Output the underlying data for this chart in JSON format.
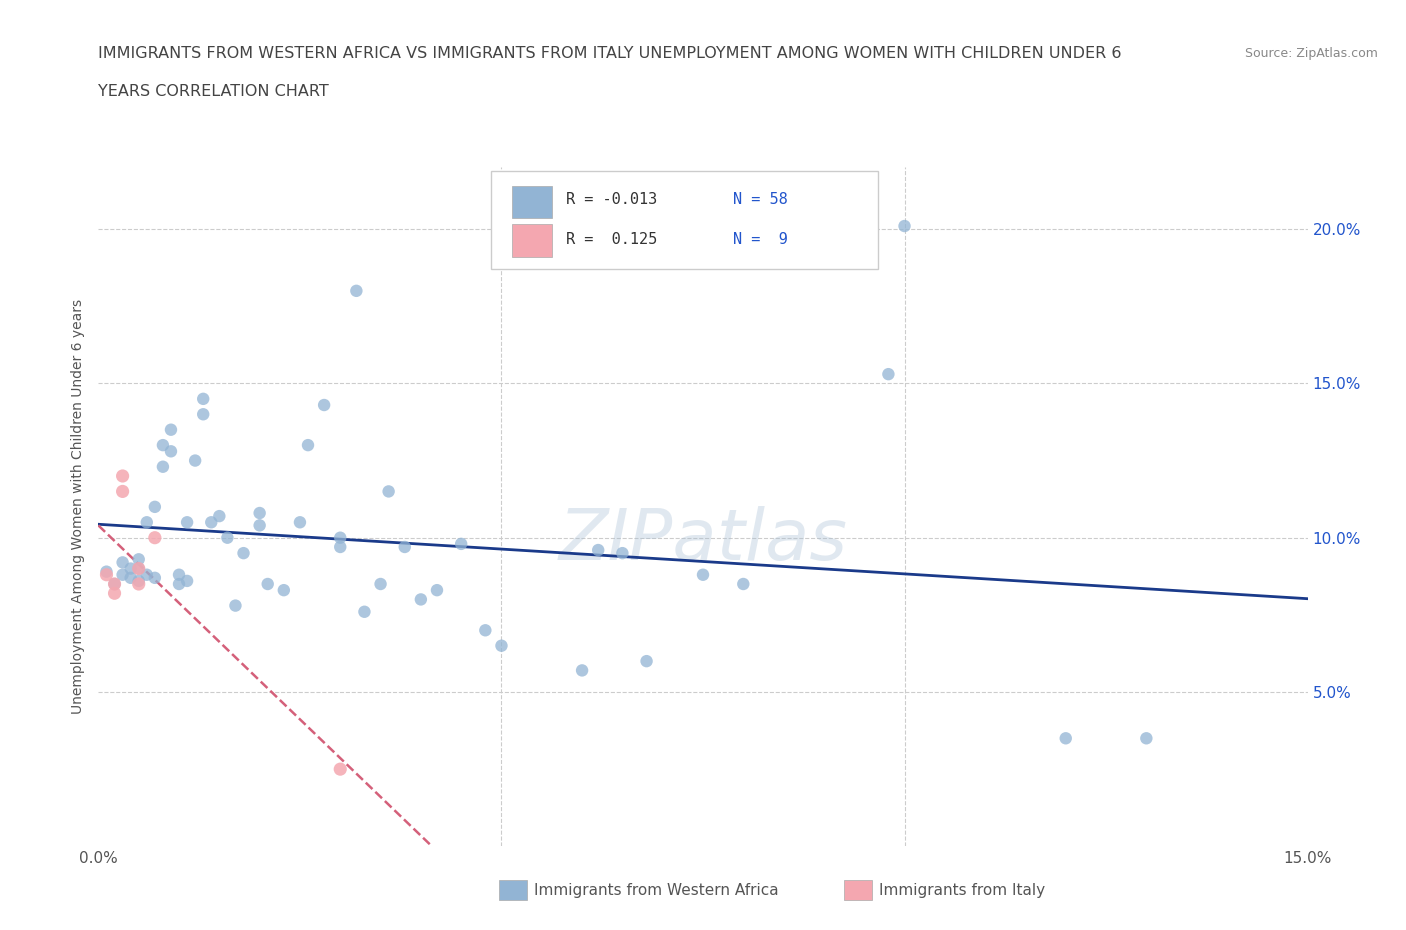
{
  "title_line1": "IMMIGRANTS FROM WESTERN AFRICA VS IMMIGRANTS FROM ITALY UNEMPLOYMENT AMONG WOMEN WITH CHILDREN UNDER 6",
  "title_line2": "YEARS CORRELATION CHART",
  "source": "Source: ZipAtlas.com",
  "xlabel_label": "Immigrants from Western Africa",
  "ylabel_label": "Unemployment Among Women with Children Under 6 years",
  "xlabel2_label": "Immigrants from Italy",
  "xlim": [
    0.0,
    0.15
  ],
  "ylim": [
    0.0,
    0.22
  ],
  "yticks": [
    0.0,
    0.05,
    0.1,
    0.15,
    0.2
  ],
  "ytick_labels": [
    "",
    "5.0%",
    "10.0%",
    "15.0%",
    "20.0%"
  ],
  "xticks": [
    0.0,
    0.05,
    0.1,
    0.15
  ],
  "xtick_labels": [
    "0.0%",
    "",
    "",
    "15.0%"
  ],
  "legend_blue_r": "R = -0.013",
  "legend_blue_n": "N = 58",
  "legend_pink_r": "R =  0.125",
  "legend_pink_n": "N =  9",
  "blue_color": "#92b4d4",
  "pink_color": "#f4a7b0",
  "line_blue_color": "#1a3a8a",
  "line_pink_color": "#d4607a",
  "watermark": "ZIPatlas",
  "blue_points": [
    [
      0.001,
      0.089
    ],
    [
      0.002,
      0.085
    ],
    [
      0.003,
      0.088
    ],
    [
      0.003,
      0.092
    ],
    [
      0.004,
      0.087
    ],
    [
      0.004,
      0.09
    ],
    [
      0.005,
      0.086
    ],
    [
      0.005,
      0.09
    ],
    [
      0.005,
      0.093
    ],
    [
      0.006,
      0.105
    ],
    [
      0.006,
      0.088
    ],
    [
      0.007,
      0.11
    ],
    [
      0.007,
      0.087
    ],
    [
      0.008,
      0.123
    ],
    [
      0.008,
      0.13
    ],
    [
      0.009,
      0.135
    ],
    [
      0.009,
      0.128
    ],
    [
      0.01,
      0.085
    ],
    [
      0.01,
      0.088
    ],
    [
      0.011,
      0.105
    ],
    [
      0.011,
      0.086
    ],
    [
      0.012,
      0.125
    ],
    [
      0.013,
      0.145
    ],
    [
      0.013,
      0.14
    ],
    [
      0.014,
      0.105
    ],
    [
      0.015,
      0.107
    ],
    [
      0.016,
      0.1
    ],
    [
      0.017,
      0.078
    ],
    [
      0.018,
      0.095
    ],
    [
      0.02,
      0.104
    ],
    [
      0.02,
      0.108
    ],
    [
      0.021,
      0.085
    ],
    [
      0.023,
      0.083
    ],
    [
      0.025,
      0.105
    ],
    [
      0.026,
      0.13
    ],
    [
      0.028,
      0.143
    ],
    [
      0.03,
      0.1
    ],
    [
      0.03,
      0.097
    ],
    [
      0.032,
      0.18
    ],
    [
      0.033,
      0.076
    ],
    [
      0.035,
      0.085
    ],
    [
      0.036,
      0.115
    ],
    [
      0.038,
      0.097
    ],
    [
      0.04,
      0.08
    ],
    [
      0.042,
      0.083
    ],
    [
      0.045,
      0.098
    ],
    [
      0.048,
      0.07
    ],
    [
      0.05,
      0.065
    ],
    [
      0.06,
      0.057
    ],
    [
      0.062,
      0.096
    ],
    [
      0.065,
      0.095
    ],
    [
      0.068,
      0.06
    ],
    [
      0.075,
      0.088
    ],
    [
      0.08,
      0.085
    ],
    [
      0.098,
      0.153
    ],
    [
      0.1,
      0.201
    ],
    [
      0.12,
      0.035
    ],
    [
      0.13,
      0.035
    ]
  ],
  "pink_points": [
    [
      0.001,
      0.088
    ],
    [
      0.002,
      0.082
    ],
    [
      0.002,
      0.085
    ],
    [
      0.003,
      0.12
    ],
    [
      0.003,
      0.115
    ],
    [
      0.005,
      0.085
    ],
    [
      0.005,
      0.09
    ],
    [
      0.007,
      0.1
    ],
    [
      0.03,
      0.025
    ]
  ]
}
